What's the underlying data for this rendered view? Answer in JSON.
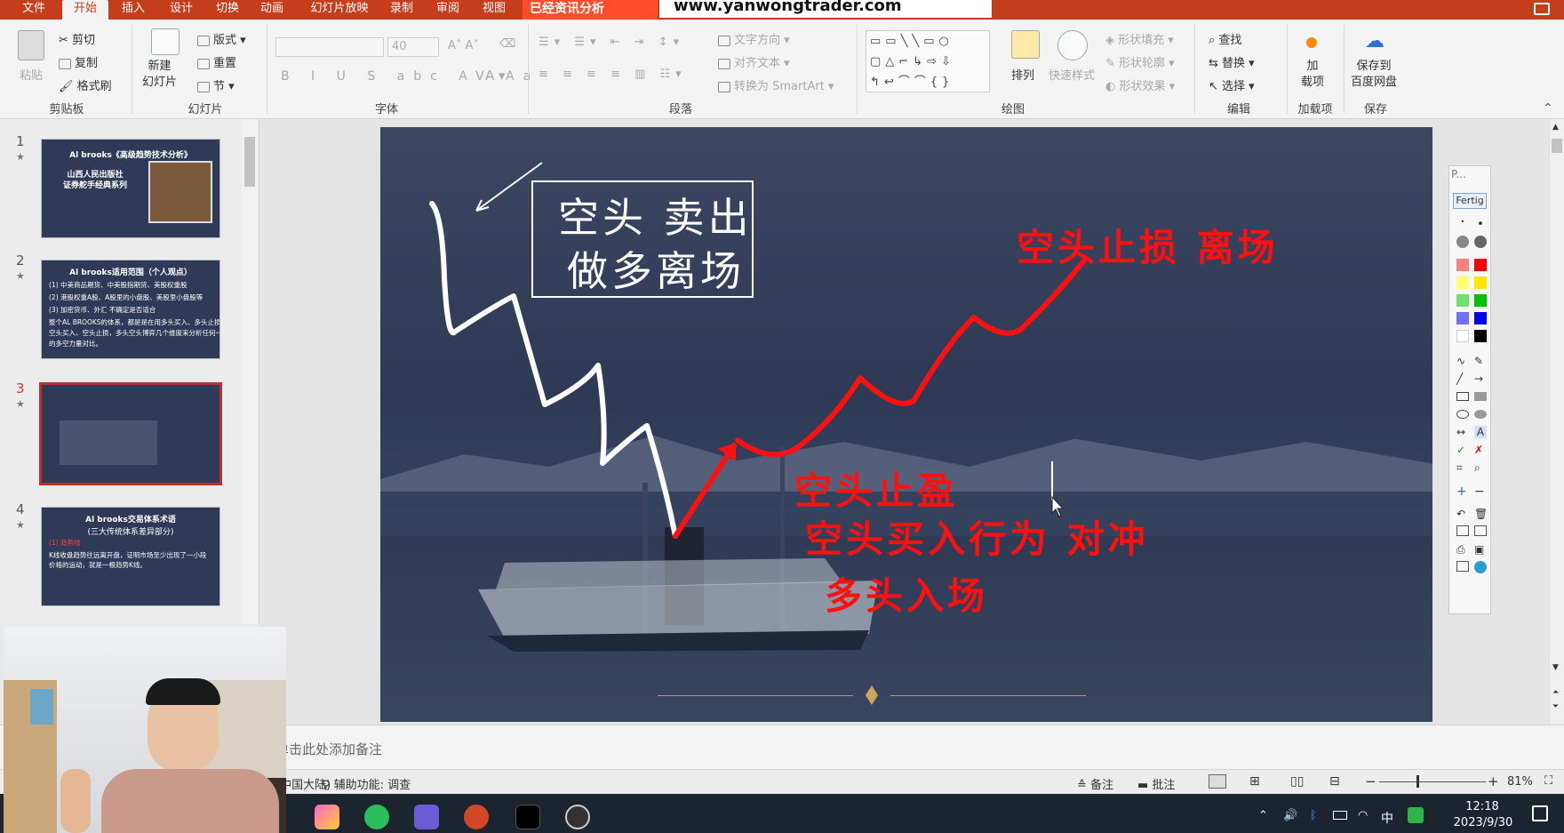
{
  "tabs": [
    "文件",
    "开始",
    "插入",
    "设计",
    "切换",
    "动画",
    "幻灯片放映",
    "录制",
    "审阅",
    "视图"
  ],
  "active_tab": "开始",
  "banner_text": "已经资讯分析",
  "url_text": "www.yanwongtrader.com",
  "ribbon": {
    "clipboard": {
      "paste": "粘贴",
      "cut": "剪切",
      "copy": "复制",
      "format_painter": "格式刷",
      "label": "剪贴板"
    },
    "slides": {
      "new_slide": "新建\n幻灯片",
      "layout": "版式",
      "reset": "重置",
      "section": "节",
      "label": "幻灯片"
    },
    "font": {
      "size": "40",
      "label": "字体"
    },
    "paragraph": {
      "text_direction": "文字方向",
      "align_text": "对齐文本",
      "smartart": "转换为 SmartArt",
      "label": "段落"
    },
    "drawing": {
      "arrange": "排列",
      "quick_styles": "快速样式",
      "shape_fill": "形状填充",
      "shape_outline": "形状轮廓",
      "shape_effects": "形状效果",
      "label": "绘图"
    },
    "editing": {
      "find": "查找",
      "replace": "替换",
      "select": "选择",
      "label": "编辑"
    },
    "addins": {
      "button": "加\n载项",
      "label": "加载项"
    },
    "save": {
      "button": "保存到\n百度网盘",
      "label": "保存"
    }
  },
  "thumbnails": [
    {
      "num": "1",
      "star": "★",
      "title": "Al brooks《高级趋势技术分析》",
      "line2": "山西人民出版社",
      "line3": "证券舵手经典系列"
    },
    {
      "num": "2",
      "star": "★",
      "title": "Al brooks适用范围（个人观点）",
      "lines": [
        "(1) 中美商品期货、中美股指期货、美股权重股",
        "(2) 港股权重A股、A股里的小盘股、美股里小盘股等",
        "(3) 加密货币、外汇 不确定是否适合",
        "整个AL BROOKS的体系，都是是在用多头买入、多头止损、",
        "空头买入、空头止损，多头空头博弈几个维度来分析任何一个市场",
        "的多空力量对比。"
      ]
    },
    {
      "num": "3",
      "star": "★"
    },
    {
      "num": "4",
      "star": "★",
      "title": "Al brooks交易体系术语",
      "line2": "(三大传统体系差异部分)",
      "line3": "(1) 趋势线",
      "body": "K线收盘趋势往远离开盘，证明市场至少出现了一小段价格的运动，就是一根趋势K线。"
    }
  ],
  "slide": {
    "box_line1": "空头 卖出",
    "box_line2": "做多离场",
    "red_top": "空头止损 离场",
    "red_mid": "空头止盈",
    "red_hedge": "空头买入行为 对冲",
    "red_long": "多头入场"
  },
  "pen_tool": {
    "title": "P...",
    "done": "Fertig"
  },
  "notes_placeholder": "单击此处添加备注",
  "status": {
    "language": "(中国大陆)",
    "accessibility": "辅助功能: 调查",
    "notes": "备注",
    "comments": "批注",
    "zoom": "81%"
  },
  "taskbar": {
    "time": "12:18",
    "date": "2023/9/30",
    "ime": "中"
  },
  "colors": {
    "accent": "#c43e1c",
    "slide_bg": "#2f3a55",
    "red_arrow": "#ff1010"
  }
}
